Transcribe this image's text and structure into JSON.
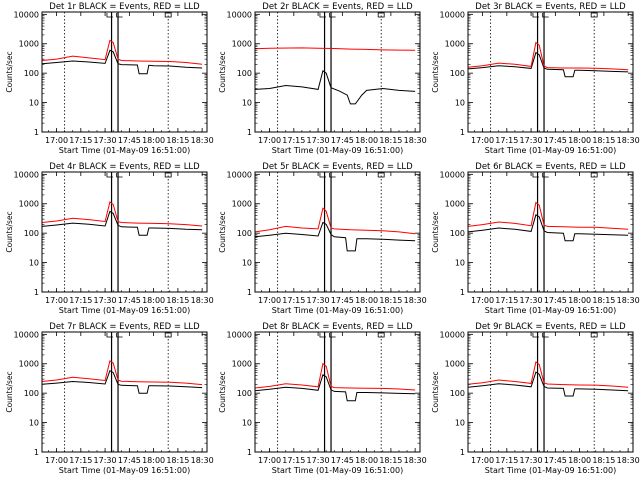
{
  "chart_data": [
    {
      "title": "Det 1r BLACK = Events, RED = LLD",
      "type": "line",
      "xlabel": "Start Time (01-May-09 16:51:00)",
      "ylabel": "Counts/sec",
      "x_ticks": [
        "17:00",
        "17:15",
        "17:30",
        "17:45",
        "18:00",
        "18:15",
        "18:30"
      ],
      "y_ticks": [
        "1",
        "10",
        "100",
        "1000",
        "10000"
      ],
      "y_scale": "log",
      "ylim": [
        1,
        12000
      ],
      "markers": [
        "17:05",
        "17:34",
        "17:38",
        "18:09"
      ],
      "series": [
        {
          "color": "#000000",
          "x": [
            "16:51",
            "17:00",
            "17:10",
            "17:20",
            "17:30",
            "17:33",
            "17:35",
            "17:38",
            "17:40",
            "17:50",
            "17:51",
            "17:56",
            "17:57",
            "18:00",
            "18:10",
            "18:20",
            "18:30"
          ],
          "y": [
            210,
            230,
            260,
            240,
            215,
            600,
            530,
            210,
            195,
            190,
            95,
            95,
            185,
            180,
            175,
            160,
            150
          ]
        },
        {
          "color": "#ff0000",
          "x": [
            "16:51",
            "17:00",
            "17:10",
            "17:20",
            "17:30",
            "17:33",
            "17:35",
            "17:38",
            "17:40",
            "17:50",
            "18:00",
            "18:10",
            "18:20",
            "18:30"
          ],
          "y": [
            270,
            300,
            380,
            330,
            290,
            1300,
            1100,
            300,
            270,
            260,
            255,
            250,
            230,
            200
          ]
        }
      ]
    },
    {
      "title": "Det 2r BLACK = Events, RED = LLD",
      "type": "line",
      "xlabel": "Start Time (01-May-09 16:51:00)",
      "ylabel": "Counts/sec",
      "x_ticks": [
        "17:00",
        "17:15",
        "17:30",
        "17:45",
        "18:00",
        "18:15",
        "18:30"
      ],
      "y_ticks": [
        "1",
        "10",
        "100",
        "1000",
        "10000"
      ],
      "y_scale": "log",
      "ylim": [
        1,
        12000
      ],
      "markers": [
        "17:05",
        "17:34",
        "17:38",
        "18:09"
      ],
      "series": [
        {
          "color": "#000000",
          "x": [
            "16:51",
            "17:00",
            "17:10",
            "17:20",
            "17:30",
            "17:33",
            "17:35",
            "17:38",
            "17:43",
            "17:48",
            "17:50",
            "17:53",
            "17:57",
            "18:00",
            "18:10",
            "18:20",
            "18:30"
          ],
          "y": [
            28,
            30,
            38,
            34,
            28,
            120,
            100,
            32,
            25,
            18,
            9,
            9,
            18,
            26,
            30,
            26,
            24
          ]
        },
        {
          "color": "#ff0000",
          "x": [
            "16:51",
            "17:00",
            "17:20",
            "17:30",
            "17:40",
            "17:50",
            "18:00",
            "18:10",
            "18:20",
            "18:30"
          ],
          "y": [
            680,
            700,
            720,
            700,
            690,
            660,
            640,
            620,
            610,
            600
          ]
        }
      ]
    },
    {
      "title": "Det 3r BLACK = Events, RED = LLD",
      "type": "line",
      "xlabel": "Start Time (01-May-09 16:51:00)",
      "ylabel": "Counts/sec",
      "x_ticks": [
        "17:00",
        "17:15",
        "17:30",
        "17:45",
        "18:00",
        "18:15",
        "18:30"
      ],
      "y_ticks": [
        "1",
        "10",
        "100",
        "1000",
        "10000"
      ],
      "y_scale": "log",
      "ylim": [
        1,
        12000
      ],
      "markers": [
        "17:05",
        "17:34",
        "17:38",
        "18:09"
      ],
      "series": [
        {
          "color": "#000000",
          "x": [
            "16:51",
            "17:00",
            "17:10",
            "17:20",
            "17:30",
            "17:33",
            "17:35",
            "17:38",
            "17:40",
            "17:50",
            "17:51",
            "17:56",
            "17:57",
            "18:00",
            "18:10",
            "18:20",
            "18:30"
          ],
          "y": [
            140,
            155,
            180,
            165,
            145,
            500,
            420,
            150,
            135,
            130,
            75,
            75,
            125,
            125,
            120,
            115,
            110
          ]
        },
        {
          "color": "#ff0000",
          "x": [
            "16:51",
            "17:00",
            "17:10",
            "17:20",
            "17:30",
            "17:33",
            "17:35",
            "17:38",
            "17:40",
            "17:50",
            "18:00",
            "18:10",
            "18:20",
            "18:30"
          ],
          "y": [
            160,
            180,
            220,
            200,
            170,
            1100,
            900,
            175,
            155,
            150,
            150,
            148,
            140,
            130
          ]
        }
      ]
    },
    {
      "title": "Det 4r BLACK = Events, RED = LLD",
      "type": "line",
      "xlabel": "Start Time (01-May-09 16:51:00)",
      "ylabel": "Counts/sec",
      "x_ticks": [
        "17:00",
        "17:15",
        "17:30",
        "17:45",
        "18:00",
        "18:15",
        "18:30"
      ],
      "y_ticks": [
        "1",
        "10",
        "100",
        "1000",
        "10000"
      ],
      "y_scale": "log",
      "ylim": [
        1,
        12000
      ],
      "markers": [
        "17:05",
        "17:34",
        "17:38",
        "18:09"
      ],
      "series": [
        {
          "color": "#000000",
          "x": [
            "16:51",
            "17:00",
            "17:10",
            "17:20",
            "17:30",
            "17:33",
            "17:35",
            "17:38",
            "17:40",
            "17:50",
            "17:51",
            "17:56",
            "17:57",
            "18:00",
            "18:10",
            "18:20",
            "18:30"
          ],
          "y": [
            170,
            190,
            220,
            200,
            175,
            550,
            470,
            185,
            165,
            160,
            85,
            85,
            150,
            150,
            145,
            135,
            130
          ]
        },
        {
          "color": "#ff0000",
          "x": [
            "16:51",
            "17:00",
            "17:10",
            "17:20",
            "17:30",
            "17:33",
            "17:35",
            "17:38",
            "17:40",
            "17:50",
            "18:00",
            "18:10",
            "18:20",
            "18:30"
          ],
          "y": [
            230,
            260,
            320,
            290,
            250,
            1150,
            950,
            250,
            230,
            220,
            215,
            210,
            195,
            175
          ]
        }
      ]
    },
    {
      "title": "Det 5r BLACK = Events, RED = LLD",
      "type": "line",
      "xlabel": "Start Time (01-May-09 16:51:00)",
      "ylabel": "Counts/sec",
      "x_ticks": [
        "17:00",
        "17:15",
        "17:30",
        "17:45",
        "18:00",
        "18:15",
        "18:30"
      ],
      "y_ticks": [
        "1",
        "10",
        "100",
        "1000",
        "10000"
      ],
      "y_scale": "log",
      "ylim": [
        1,
        12000
      ],
      "markers": [
        "17:05",
        "17:34",
        "17:38",
        "18:09"
      ],
      "series": [
        {
          "color": "#000000",
          "x": [
            "16:51",
            "17:00",
            "17:10",
            "17:20",
            "17:30",
            "17:33",
            "17:35",
            "17:38",
            "17:40",
            "17:47",
            "17:48",
            "17:53",
            "17:54",
            "18:00",
            "18:10",
            "18:20",
            "18:30"
          ],
          "y": [
            75,
            85,
            100,
            90,
            80,
            230,
            200,
            90,
            75,
            70,
            25,
            25,
            65,
            65,
            62,
            58,
            55
          ]
        },
        {
          "color": "#ff0000",
          "x": [
            "16:51",
            "17:00",
            "17:10",
            "17:20",
            "17:30",
            "17:33",
            "17:35",
            "17:38",
            "17:40",
            "17:50",
            "18:00",
            "18:10",
            "18:20",
            "18:30"
          ],
          "y": [
            110,
            130,
            170,
            150,
            140,
            700,
            560,
            150,
            140,
            130,
            125,
            120,
            110,
            95
          ]
        }
      ]
    },
    {
      "title": "Det 6r BLACK = Events, RED = LLD",
      "type": "line",
      "xlabel": "Start Time (01-May-09 16:51:00)",
      "ylabel": "Counts/sec",
      "x_ticks": [
        "17:00",
        "17:15",
        "17:30",
        "17:45",
        "18:00",
        "18:15",
        "18:30"
      ],
      "y_ticks": [
        "1",
        "10",
        "100",
        "1000",
        "10000"
      ],
      "y_scale": "log",
      "ylim": [
        1,
        12000
      ],
      "markers": [
        "17:05",
        "17:34",
        "17:38",
        "18:09"
      ],
      "series": [
        {
          "color": "#000000",
          "x": [
            "16:51",
            "17:00",
            "17:10",
            "17:20",
            "17:30",
            "17:33",
            "17:35",
            "17:38",
            "17:40",
            "17:50",
            "17:51",
            "17:56",
            "17:57",
            "18:00",
            "18:10",
            "18:20",
            "18:30"
          ],
          "y": [
            110,
            125,
            150,
            135,
            115,
            420,
            360,
            120,
            105,
            100,
            55,
            55,
            95,
            95,
            92,
            88,
            85
          ]
        },
        {
          "color": "#ff0000",
          "x": [
            "16:51",
            "17:00",
            "17:10",
            "17:20",
            "17:30",
            "17:33",
            "17:35",
            "17:38",
            "17:40",
            "17:50",
            "18:00",
            "18:10",
            "18:20",
            "18:30"
          ],
          "y": [
            170,
            195,
            240,
            215,
            180,
            1100,
            900,
            190,
            170,
            165,
            160,
            158,
            148,
            135
          ]
        }
      ]
    },
    {
      "title": "Det 7r BLACK = Events, RED = LLD",
      "type": "line",
      "xlabel": "Start Time (01-May-09 16:51:00)",
      "ylabel": "Counts/sec",
      "x_ticks": [
        "17:00",
        "17:15",
        "17:30",
        "17:45",
        "18:00",
        "18:15",
        "18:30"
      ],
      "y_ticks": [
        "1",
        "10",
        "100",
        "1000",
        "10000"
      ],
      "y_scale": "log",
      "ylim": [
        1,
        12000
      ],
      "markers": [
        "17:05",
        "17:34",
        "17:38",
        "18:09"
      ],
      "series": [
        {
          "color": "#000000",
          "x": [
            "16:51",
            "17:00",
            "17:10",
            "17:20",
            "17:30",
            "17:33",
            "17:35",
            "17:38",
            "17:40",
            "17:50",
            "17:51",
            "17:56",
            "17:57",
            "18:00",
            "18:10",
            "18:20",
            "18:30"
          ],
          "y": [
            200,
            220,
            250,
            230,
            205,
            580,
            500,
            200,
            185,
            180,
            100,
            100,
            180,
            180,
            175,
            165,
            155
          ]
        },
        {
          "color": "#ff0000",
          "x": [
            "16:51",
            "17:00",
            "17:10",
            "17:20",
            "17:30",
            "17:33",
            "17:35",
            "17:38",
            "17:40",
            "17:50",
            "18:00",
            "18:10",
            "18:20",
            "18:30"
          ],
          "y": [
            250,
            280,
            350,
            310,
            270,
            1250,
            1050,
            280,
            255,
            245,
            240,
            235,
            220,
            195
          ]
        }
      ]
    },
    {
      "title": "Det 8r BLACK = Events, RED = LLD",
      "type": "line",
      "xlabel": "Start Time (01-May-09 16:51:00)",
      "ylabel": "Counts/sec",
      "x_ticks": [
        "17:00",
        "17:15",
        "17:30",
        "17:45",
        "18:00",
        "18:15",
        "18:30"
      ],
      "y_ticks": [
        "1",
        "10",
        "100",
        "1000",
        "10000"
      ],
      "y_scale": "log",
      "ylim": [
        1,
        12000
      ],
      "markers": [
        "17:05",
        "17:34",
        "17:38",
        "18:09"
      ],
      "series": [
        {
          "color": "#000000",
          "x": [
            "16:51",
            "17:00",
            "17:10",
            "17:20",
            "17:30",
            "17:33",
            "17:35",
            "17:38",
            "17:40",
            "17:47",
            "17:48",
            "17:53",
            "17:54",
            "18:00",
            "18:10",
            "18:20",
            "18:30"
          ],
          "y": [
            120,
            135,
            160,
            145,
            125,
            420,
            360,
            130,
            115,
            110,
            55,
            55,
            105,
            105,
            102,
            98,
            95
          ]
        },
        {
          "color": "#ff0000",
          "x": [
            "16:51",
            "17:00",
            "17:10",
            "17:20",
            "17:30",
            "17:33",
            "17:35",
            "17:38",
            "17:40",
            "17:50",
            "18:00",
            "18:10",
            "18:20",
            "18:30"
          ],
          "y": [
            150,
            170,
            210,
            190,
            165,
            1000,
            820,
            170,
            155,
            150,
            148,
            145,
            138,
            128
          ]
        }
      ]
    },
    {
      "title": "Det 9r BLACK = Events, RED = LLD",
      "type": "line",
      "xlabel": "Start Time (01-May-09 16:51:00)",
      "ylabel": "Counts/sec",
      "x_ticks": [
        "17:00",
        "17:15",
        "17:30",
        "17:45",
        "18:00",
        "18:15",
        "18:30"
      ],
      "y_ticks": [
        "1",
        "10",
        "100",
        "1000",
        "10000"
      ],
      "y_scale": "log",
      "ylim": [
        1,
        12000
      ],
      "markers": [
        "17:05",
        "17:34",
        "17:38",
        "18:09"
      ],
      "series": [
        {
          "color": "#000000",
          "x": [
            "16:51",
            "17:00",
            "17:10",
            "17:20",
            "17:30",
            "17:33",
            "17:35",
            "17:38",
            "17:40",
            "17:50",
            "17:51",
            "17:56",
            "17:57",
            "18:00",
            "18:10",
            "18:20",
            "18:30"
          ],
          "y": [
            160,
            180,
            210,
            190,
            165,
            520,
            440,
            170,
            150,
            145,
            80,
            80,
            140,
            140,
            135,
            128,
            120
          ]
        },
        {
          "color": "#ff0000",
          "x": [
            "16:51",
            "17:00",
            "17:10",
            "17:20",
            "17:30",
            "17:33",
            "17:35",
            "17:38",
            "17:40",
            "17:50",
            "18:00",
            "18:10",
            "18:20",
            "18:30"
          ],
          "y": [
            200,
            225,
            280,
            250,
            215,
            1150,
            950,
            225,
            205,
            195,
            190,
            188,
            175,
            160
          ]
        }
      ]
    }
  ]
}
